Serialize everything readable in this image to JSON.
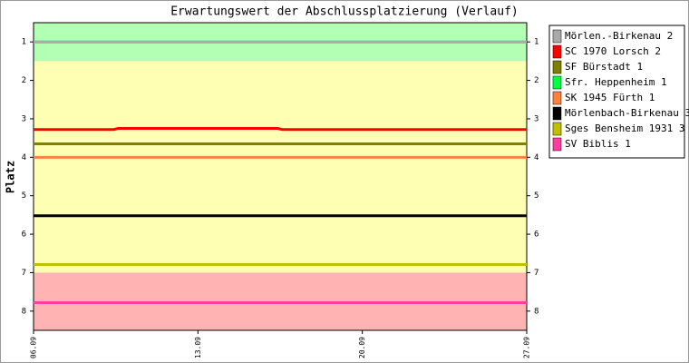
{
  "chart_data": {
    "type": "line",
    "title": "Erwartungswert der Abschlussplatzierung (Verlauf)",
    "ylabel": "Platz",
    "x": [
      0,
      3.4,
      3.6,
      10.4,
      10.6,
      21
    ],
    "xlim": [
      0,
      21
    ],
    "xticks": [
      {
        "value": 0,
        "label": "06.09"
      },
      {
        "value": 7,
        "label": "13.09"
      },
      {
        "value": 14,
        "label": "20.09"
      },
      {
        "value": 21,
        "label": "27.09"
      }
    ],
    "ylim": [
      0.5,
      8.5
    ],
    "yticks": [
      1,
      2,
      3,
      4,
      5,
      6,
      7,
      8
    ],
    "y_inverted": true,
    "bands": [
      {
        "from": 0.5,
        "to": 1.5,
        "color": "#b3ffb3"
      },
      {
        "from": 1.5,
        "to": 7,
        "color": "#ffffb3"
      },
      {
        "from": 7,
        "to": 8.5,
        "color": "#ffb3b3"
      }
    ],
    "legend": "right",
    "series": [
      {
        "name": "Mörlen.-Birkenau 2",
        "color": "#aaaaaa",
        "values": [
          1,
          1,
          1,
          1,
          1,
          1
        ]
      },
      {
        "name": "SC 1970 Lorsch 2",
        "color": "#ff0000",
        "values": [
          3.28,
          3.28,
          3.25,
          3.25,
          3.28,
          3.28
        ]
      },
      {
        "name": "SF Bürstadt 1",
        "color": "#808000",
        "values": [
          3.65,
          3.65,
          3.65,
          3.65,
          3.65,
          3.65
        ]
      },
      {
        "name": "Sfr. Heppenheim 1",
        "color": "#00ff40",
        "values": [
          1,
          1,
          1,
          1,
          1,
          1
        ]
      },
      {
        "name": "SK 1945 Fürth 1",
        "color": "#ff8040",
        "values": [
          4,
          4,
          4,
          4,
          4,
          4
        ]
      },
      {
        "name": "Mörlenbach-Birkenau 3",
        "color": "#000000",
        "values": [
          5.52,
          5.52,
          5.52,
          5.52,
          5.52,
          5.52
        ]
      },
      {
        "name": "Sges Bensheim 1931 3",
        "color": "#c0c000",
        "values": [
          6.79,
          6.79,
          6.79,
          6.79,
          6.79,
          6.79
        ]
      },
      {
        "name": "SV Biblis 1",
        "color": "#ff40a0",
        "values": [
          7.78,
          7.78,
          7.78,
          7.78,
          7.78,
          7.78
        ]
      }
    ]
  }
}
